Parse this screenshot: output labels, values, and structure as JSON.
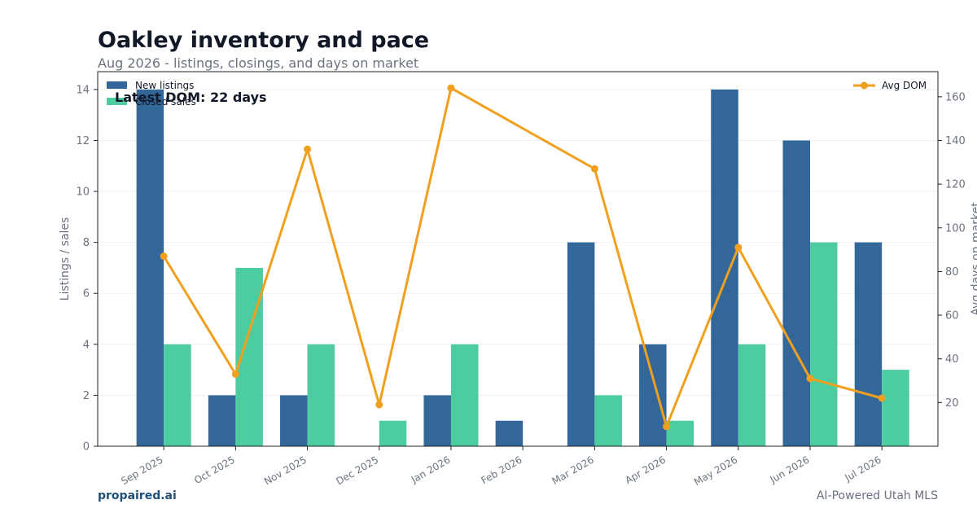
{
  "header": {
    "title": "Oakley inventory and pace",
    "subtitle": "Aug 2026 - listings, closings, and days on market"
  },
  "footer": {
    "brand": "propaired.ai",
    "tagline": "AI-Powered Utah MLS"
  },
  "colors": {
    "new_listings": "#336699",
    "closed_sales": "#4ccc9f",
    "avg_dom": "#f0a01e"
  },
  "chart_data": {
    "type": "bar",
    "categories": [
      "Sep 2025",
      "Oct 2025",
      "Nov 2025",
      "Dec 2025",
      "Jan 2026",
      "Feb 2026",
      "Mar 2026",
      "Apr 2026",
      "May 2026",
      "Jun 2026",
      "Jul 2026"
    ],
    "series": [
      {
        "name": "New listings",
        "type": "bar",
        "axis": "left",
        "values": [
          14,
          2,
          2,
          0,
          2,
          1,
          8,
          4,
          14,
          12,
          8
        ]
      },
      {
        "name": "Closed sales",
        "type": "bar",
        "axis": "left",
        "values": [
          4,
          7,
          4,
          1,
          4,
          0,
          2,
          1,
          4,
          8,
          3
        ]
      },
      {
        "name": "Avg DOM",
        "type": "line",
        "axis": "right",
        "values": [
          87,
          33,
          136,
          19,
          164,
          null,
          127,
          9,
          91,
          31,
          22
        ]
      }
    ],
    "ylabel": "Listings / sales",
    "y2label": "Avg days on market",
    "ylim": [
      0,
      14.7
    ],
    "y2lim": [
      0,
      171.5
    ],
    "yticks": [
      0,
      2,
      4,
      6,
      8,
      10,
      12,
      14
    ],
    "y2ticks": [
      20,
      40,
      60,
      80,
      100,
      120,
      140,
      160
    ],
    "annotation": "Latest DOM: 22 days",
    "legend_left": "top-left",
    "legend_right": "top-right",
    "grid": true
  }
}
